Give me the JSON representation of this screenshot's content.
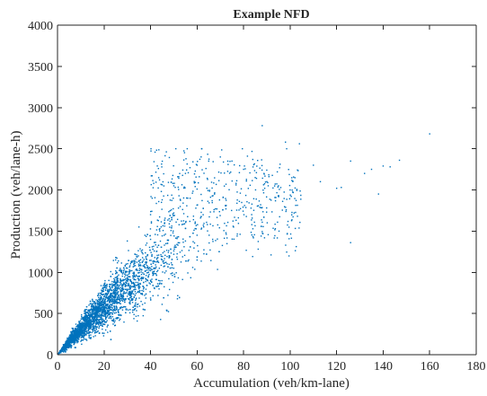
{
  "chart_data": {
    "type": "scatter",
    "title": "Example NFD",
    "xlabel": "Accumulation (veh/km-lane)",
    "ylabel": "Production (veh/lane-h)",
    "xlim": [
      0,
      180
    ],
    "ylim": [
      0,
      4000
    ],
    "xticks": [
      0,
      20,
      40,
      60,
      80,
      100,
      120,
      140,
      160,
      180
    ],
    "yticks": [
      0,
      500,
      1000,
      1500,
      2000,
      2500,
      3000,
      3500,
      4000
    ],
    "grid": false,
    "legend": "none",
    "marker_color": "#0072BD",
    "series": [
      {
        "points_sampled": [
          [
            2,
            40
          ],
          [
            4,
            110
          ],
          [
            6,
            190
          ],
          [
            8,
            260
          ],
          [
            10,
            330
          ],
          [
            12,
            420
          ],
          [
            14,
            480
          ],
          [
            16,
            560
          ],
          [
            18,
            620
          ],
          [
            20,
            700
          ],
          [
            22,
            760
          ],
          [
            24,
            840
          ],
          [
            26,
            900
          ],
          [
            28,
            980
          ],
          [
            30,
            1050
          ],
          [
            32,
            1120
          ],
          [
            34,
            1190
          ],
          [
            36,
            1260
          ],
          [
            38,
            1330
          ],
          [
            40,
            1400
          ],
          [
            42,
            1460
          ],
          [
            44,
            1530
          ],
          [
            46,
            1590
          ],
          [
            48,
            1650
          ],
          [
            50,
            1720
          ],
          [
            52,
            1780
          ],
          [
            54,
            1840
          ],
          [
            56,
            1900
          ],
          [
            58,
            1960
          ],
          [
            60,
            2010
          ],
          [
            25,
            1150
          ],
          [
            30,
            1380
          ],
          [
            35,
            1550
          ],
          [
            40,
            1700
          ],
          [
            45,
            1880
          ],
          [
            50,
            2050
          ],
          [
            55,
            2200
          ],
          [
            60,
            2300
          ],
          [
            65,
            2350
          ],
          [
            20,
            520
          ],
          [
            25,
            650
          ],
          [
            30,
            780
          ],
          [
            35,
            900
          ],
          [
            40,
            1020
          ],
          [
            45,
            1150
          ],
          [
            50,
            1260
          ],
          [
            55,
            1380
          ],
          [
            60,
            1450
          ],
          [
            62,
            2500
          ],
          [
            70,
            2400
          ],
          [
            75,
            2350
          ],
          [
            80,
            2250
          ],
          [
            85,
            2150
          ],
          [
            90,
            2100
          ],
          [
            95,
            2050
          ],
          [
            100,
            2000
          ],
          [
            88,
            2780
          ],
          [
            98,
            2580
          ],
          [
            104,
            2560
          ],
          [
            110,
            2300
          ],
          [
            113,
            2100
          ],
          [
            120,
            2020
          ],
          [
            122,
            2030
          ],
          [
            126,
            2350
          ],
          [
            132,
            2200
          ],
          [
            135,
            2250
          ],
          [
            140,
            2290
          ],
          [
            143,
            2280
          ],
          [
            147,
            2360
          ],
          [
            160,
            2680
          ],
          [
            126,
            1360
          ],
          [
            138,
            1950
          ]
        ]
      }
    ]
  }
}
